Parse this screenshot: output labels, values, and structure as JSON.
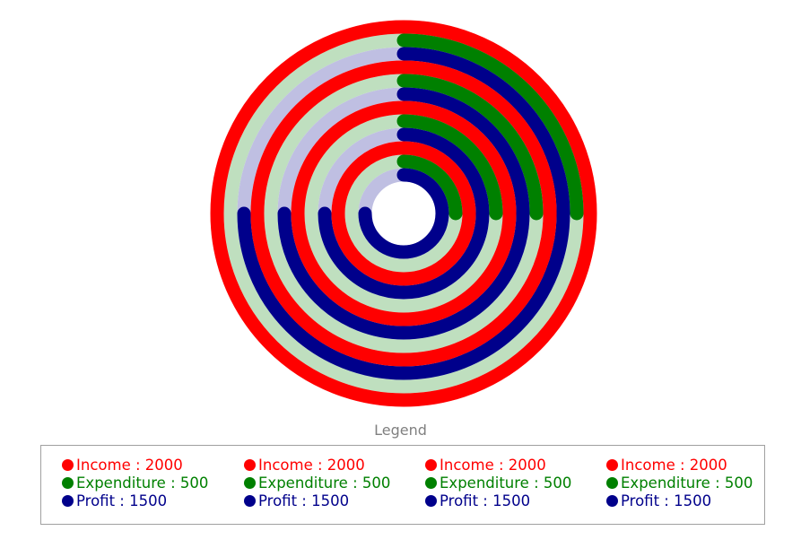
{
  "legend": {
    "title": "Legend",
    "groups": [
      [
        {
          "label": "Income : 2000",
          "color": "#ff0000"
        },
        {
          "label": "Expenditure : 500",
          "color": "#008000"
        },
        {
          "label": "Profit : 1500",
          "color": "#00008b"
        }
      ],
      [
        {
          "label": "Income : 2000",
          "color": "#ff0000"
        },
        {
          "label": "Expenditure : 500",
          "color": "#008000"
        },
        {
          "label": "Profit : 1500",
          "color": "#00008b"
        }
      ],
      [
        {
          "label": "Income : 2000",
          "color": "#ff0000"
        },
        {
          "label": "Expenditure : 500",
          "color": "#008000"
        },
        {
          "label": "Profit : 1500",
          "color": "#00008b"
        }
      ],
      [
        {
          "label": "Income : 2000",
          "color": "#ff0000"
        },
        {
          "label": "Expenditure : 500",
          "color": "#008000"
        },
        {
          "label": "Profit : 1500",
          "color": "#00008b"
        }
      ]
    ]
  },
  "chart_data": {
    "type": "radial-bar",
    "max": 2000,
    "legend_position": "bottom",
    "track_colors": {
      "#ff0000": "#ffbfbf",
      "#008000": "#bfdfbf",
      "#00008b": "#bfbfe2"
    },
    "series": [
      {
        "group": 1,
        "points": [
          {
            "name": "Income",
            "value": 2000,
            "color": "#ff0000"
          },
          {
            "name": "Expenditure",
            "value": 500,
            "color": "#008000"
          },
          {
            "name": "Profit",
            "value": 1500,
            "color": "#00008b"
          }
        ]
      },
      {
        "group": 2,
        "points": [
          {
            "name": "Income",
            "value": 2000,
            "color": "#ff0000"
          },
          {
            "name": "Expenditure",
            "value": 500,
            "color": "#008000"
          },
          {
            "name": "Profit",
            "value": 1500,
            "color": "#00008b"
          }
        ]
      },
      {
        "group": 3,
        "points": [
          {
            "name": "Income",
            "value": 2000,
            "color": "#ff0000"
          },
          {
            "name": "Expenditure",
            "value": 500,
            "color": "#008000"
          },
          {
            "name": "Profit",
            "value": 1500,
            "color": "#00008b"
          }
        ]
      },
      {
        "group": 4,
        "points": [
          {
            "name": "Income",
            "value": 2000,
            "color": "#ff0000"
          },
          {
            "name": "Expenditure",
            "value": 500,
            "color": "#008000"
          },
          {
            "name": "Profit",
            "value": 1500,
            "color": "#00008b"
          }
        ]
      }
    ]
  }
}
